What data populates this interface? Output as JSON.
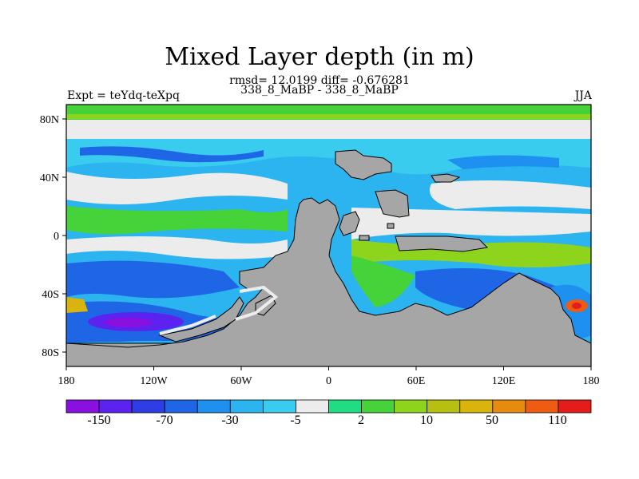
{
  "map": {
    "title": "Mixed Layer depth (in m)",
    "stats": "rmsd= 12.0199 diff= -0.676281",
    "subtitle": "338_8_MaBP - 338_8_MaBP",
    "experiment": "Expt = teYdq-teXpq",
    "season": "JJA",
    "lat_ticks": [
      "80N",
      "40N",
      "0",
      "40S",
      "80S"
    ],
    "lon_ticks": [
      "180",
      "120W",
      "60W",
      "0",
      "60E",
      "120E",
      "180"
    ]
  },
  "colorbar": {
    "labels": [
      "-150",
      "-70",
      "-30",
      "-5",
      "2",
      "10",
      "50",
      "110"
    ],
    "colors": [
      "#8a10e0",
      "#5b22f0",
      "#2e3de6",
      "#1f66e6",
      "#1e90f0",
      "#2bb4ef",
      "#39ccee",
      "#ececec",
      "#22dc84",
      "#46d33a",
      "#8ed41c",
      "#b7c011",
      "#d9b40c",
      "#e78b0f",
      "#ee5b12",
      "#e51c1c"
    ]
  }
}
